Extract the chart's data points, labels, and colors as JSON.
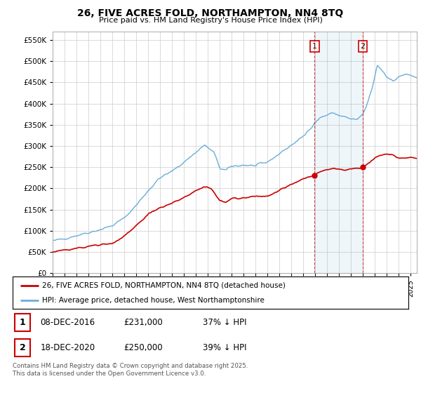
{
  "title": "26, FIVE ACRES FOLD, NORTHAMPTON, NN4 8TQ",
  "subtitle": "Price paid vs. HM Land Registry's House Price Index (HPI)",
  "ylim": [
    0,
    570000
  ],
  "yticks": [
    0,
    50000,
    100000,
    150000,
    200000,
    250000,
    300000,
    350000,
    400000,
    450000,
    500000,
    550000
  ],
  "xlim_start": 1995.0,
  "xlim_end": 2025.5,
  "hpi_color": "#6baed6",
  "price_color": "#cc0000",
  "vline_color": "#cc0000",
  "sale1_x": 2016.94,
  "sale1_y": 231000,
  "sale2_x": 2020.97,
  "sale2_y": 250000,
  "legend_price_label": "26, FIVE ACRES FOLD, NORTHAMPTON, NN4 8TQ (detached house)",
  "legend_hpi_label": "HPI: Average price, detached house, West Northamptonshire",
  "table_row1": [
    "1",
    "08-DEC-2016",
    "£231,000",
    "37% ↓ HPI"
  ],
  "table_row2": [
    "2",
    "18-DEC-2020",
    "£250,000",
    "39% ↓ HPI"
  ],
  "footer": "Contains HM Land Registry data © Crown copyright and database right 2025.\nThis data is licensed under the Open Government Licence v3.0.",
  "background_color": "#ffffff",
  "grid_color": "#cccccc"
}
